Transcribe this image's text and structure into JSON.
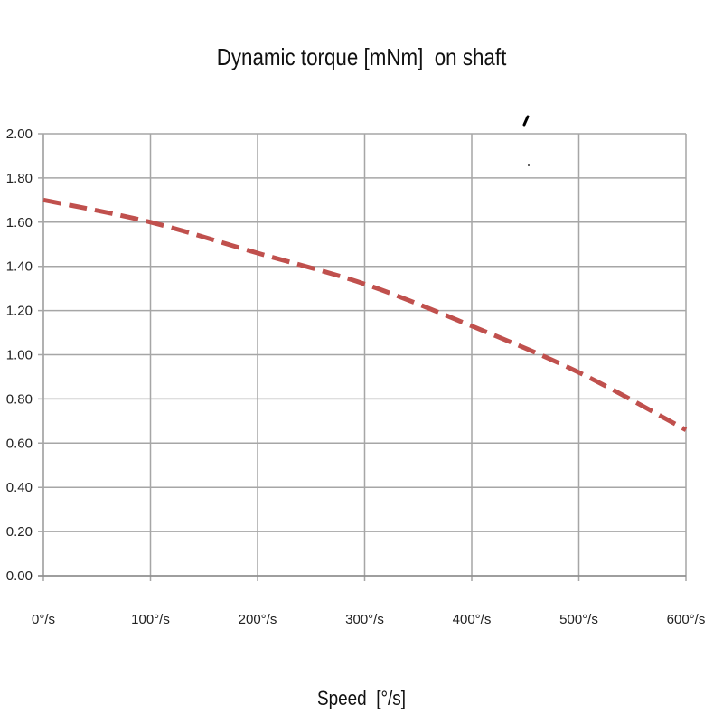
{
  "chart_data": {
    "type": "line",
    "title": "Dynamic torque [mNm]  on shaft",
    "xlabel": "Speed  [°/s]",
    "ylabel": "",
    "x_ticks": [
      "0°/s",
      "100°/s",
      "200°/s",
      "300°/s",
      "400°/s",
      "500°/s",
      "600°/s"
    ],
    "y_ticks": [
      "0.00",
      "0.20",
      "0.40",
      "0.60",
      "0.80",
      "1.00",
      "1.20",
      "1.40",
      "1.60",
      "1.80",
      "2.00"
    ],
    "xlim": [
      0,
      600
    ],
    "ylim": [
      0,
      2
    ],
    "grid": true,
    "series": [
      {
        "x": [
          0,
          100,
          200,
          300,
          400,
          500,
          600
        ],
        "y": [
          1.7,
          1.6,
          1.46,
          1.32,
          1.13,
          0.92,
          0.66
        ],
        "color": "#c0504d",
        "style": "dashed"
      }
    ]
  }
}
